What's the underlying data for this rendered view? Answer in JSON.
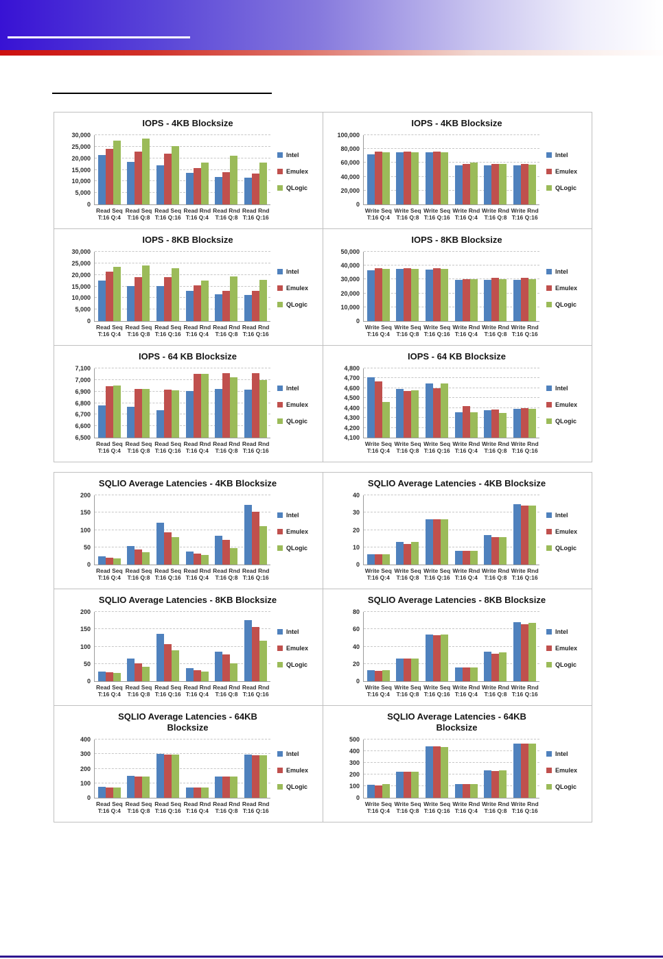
{
  "page": {
    "header": {
      "blue_band_color_left": "#3812d4",
      "red_band_color_left": "#cc1010",
      "white_rule_color": "#ffffff",
      "black_rule_color": "#000000"
    },
    "footer_rule_color": "#2e1390"
  },
  "legend": {
    "position": "right",
    "items": [
      {
        "label": "Intel",
        "color": "#4F81BD"
      },
      {
        "label": "Emulex",
        "color": "#C0504D"
      },
      {
        "label": "QLogic",
        "color": "#9BBB59"
      }
    ]
  },
  "chart_data": [
    {
      "id": "iops-4kb-read",
      "type": "bar",
      "group": "iops",
      "title_lines": [
        "IOPS - 4KB Blocksize"
      ],
      "ymin": 0,
      "ymax": 30000,
      "ticks": [
        "0",
        "5,000",
        "10,000",
        "15,000",
        "20,000",
        "25,000",
        "30,000"
      ],
      "categories": [
        [
          "Read Seq",
          "T:16 Q:4"
        ],
        [
          "Read Seq",
          "T:16 Q:8"
        ],
        [
          "Read Seq",
          "T:16 Q:16"
        ],
        [
          "Read Rnd",
          "T:16 Q:4"
        ],
        [
          "Read Rnd",
          "T:16 Q:8"
        ],
        [
          "Read Rnd",
          "T:16 Q:16"
        ]
      ],
      "series": [
        {
          "name": "Intel",
          "color": "#4F81BD",
          "values": [
            21500,
            18500,
            17000,
            13800,
            12000,
            11500
          ]
        },
        {
          "name": "Emulex",
          "color": "#C0504D",
          "values": [
            24000,
            23000,
            22000,
            15800,
            14000,
            13300
          ]
        },
        {
          "name": "QLogic",
          "color": "#9BBB59",
          "values": [
            27700,
            28600,
            25300,
            18000,
            21000,
            18200
          ]
        }
      ]
    },
    {
      "id": "iops-4kb-write",
      "type": "bar",
      "group": "iops",
      "title_lines": [
        "IOPS - 4KB Blocksize"
      ],
      "ymin": 0,
      "ymax": 100000,
      "ticks": [
        "0",
        "20,000",
        "40,000",
        "60,000",
        "80,000",
        "100,000"
      ],
      "categories": [
        [
          "Write Seq",
          "T:16 Q:4"
        ],
        [
          "Write Seq",
          "T:16 Q:8"
        ],
        [
          "Write Seq",
          "T:16 Q:16"
        ],
        [
          "Write Rnd",
          "T:16 Q:4"
        ],
        [
          "Write Rnd",
          "T:16 Q:8"
        ],
        [
          "Write Rnd",
          "T:16 Q:16"
        ]
      ],
      "series": [
        {
          "name": "Intel",
          "color": "#4F81BD",
          "values": [
            72000,
            75000,
            75000,
            56000,
            56000,
            56000
          ]
        },
        {
          "name": "Emulex",
          "color": "#C0504D",
          "values": [
            76000,
            76000,
            76000,
            58500,
            58500,
            58500
          ]
        },
        {
          "name": "QLogic",
          "color": "#9BBB59",
          "values": [
            75000,
            75000,
            75000,
            60000,
            58500,
            57500
          ]
        }
      ]
    },
    {
      "id": "iops-8kb-read",
      "type": "bar",
      "group": "iops",
      "title_lines": [
        "IOPS - 8KB Blocksize"
      ],
      "ymin": 0,
      "ymax": 30000,
      "ticks": [
        "0",
        "5,000",
        "10,000",
        "15,000",
        "20,000",
        "25,000",
        "30,000"
      ],
      "categories": [
        [
          "Read Seq",
          "T:16 Q:4"
        ],
        [
          "Read Seq",
          "T:16 Q:8"
        ],
        [
          "Read Seq",
          "T:16 Q:16"
        ],
        [
          "Read Rnd",
          "T:16 Q:4"
        ],
        [
          "Read Rnd",
          "T:16 Q:8"
        ],
        [
          "Read Rnd",
          "T:16 Q:16"
        ]
      ],
      "series": [
        {
          "name": "Intel",
          "color": "#4F81BD",
          "values": [
            17500,
            15200,
            15200,
            13000,
            11500,
            11200
          ]
        },
        {
          "name": "Emulex",
          "color": "#C0504D",
          "values": [
            21500,
            19000,
            19000,
            15500,
            13000,
            13000
          ]
        },
        {
          "name": "QLogic",
          "color": "#9BBB59",
          "values": [
            23500,
            24200,
            22800,
            17500,
            19200,
            17700
          ]
        }
      ]
    },
    {
      "id": "iops-8kb-write",
      "type": "bar",
      "group": "iops",
      "title_lines": [
        "IOPS - 8KB Blocksize"
      ],
      "ymin": 0,
      "ymax": 50000,
      "ticks": [
        "0",
        "10,000",
        "20,000",
        "30,000",
        "40,000",
        "50,000"
      ],
      "categories": [
        [
          "Write Seq",
          "T:16 Q:4"
        ],
        [
          "Write Seq",
          "T:16 Q:8"
        ],
        [
          "Write Seq",
          "T:16 Q:16"
        ],
        [
          "Write Rnd",
          "T:16 Q:4"
        ],
        [
          "Write Rnd",
          "T:16 Q:8"
        ],
        [
          "Write Rnd",
          "T:16 Q:16"
        ]
      ],
      "series": [
        {
          "name": "Intel",
          "color": "#4F81BD",
          "values": [
            36500,
            37500,
            37000,
            29800,
            29500,
            29500
          ]
        },
        {
          "name": "Emulex",
          "color": "#C0504D",
          "values": [
            38000,
            38000,
            38000,
            30200,
            31000,
            31000
          ]
        },
        {
          "name": "QLogic",
          "color": "#9BBB59",
          "values": [
            37500,
            37500,
            37500,
            30200,
            30200,
            30000
          ]
        }
      ]
    },
    {
      "id": "iops-64kb-read",
      "type": "bar",
      "group": "iops",
      "title_lines": [
        "IOPS - 64 KB Blocksize"
      ],
      "ymin": 6500,
      "ymax": 7100,
      "ticks": [
        "6,500",
        "6,600",
        "6,700",
        "6,800",
        "6,900",
        "7,000",
        "7,100"
      ],
      "categories": [
        [
          "Read Seq",
          "T:16 Q:4"
        ],
        [
          "Read Seq",
          "T:16 Q:8"
        ],
        [
          "Read Seq",
          "T:16 Q:16"
        ],
        [
          "Read Rnd",
          "T:16 Q:4"
        ],
        [
          "Read Rnd",
          "T:16 Q:8"
        ],
        [
          "Read Rnd",
          "T:16 Q:16"
        ]
      ],
      "series": [
        {
          "name": "Intel",
          "color": "#4F81BD",
          "values": [
            6780,
            6765,
            6735,
            6905,
            6920,
            6915
          ]
        },
        {
          "name": "Emulex",
          "color": "#C0504D",
          "values": [
            6945,
            6920,
            6915,
            7055,
            7060,
            7060
          ]
        },
        {
          "name": "QLogic",
          "color": "#9BBB59",
          "values": [
            6950,
            6920,
            6910,
            7050,
            7025,
            7000
          ]
        }
      ]
    },
    {
      "id": "iops-64kb-write",
      "type": "bar",
      "group": "iops",
      "title_lines": [
        "IOPS - 64 KB Blocksize"
      ],
      "ymin": 4100,
      "ymax": 4800,
      "ticks": [
        "4,100",
        "4,200",
        "4,300",
        "4,400",
        "4,500",
        "4,600",
        "4,700",
        "4,800"
      ],
      "categories": [
        [
          "Write Seq",
          "T:16 Q:4"
        ],
        [
          "Write Seq",
          "T:16 Q:8"
        ],
        [
          "Write Seq",
          "T:16 Q:16"
        ],
        [
          "Write Rnd",
          "T:16 Q:4"
        ],
        [
          "Write Rnd",
          "T:16 Q:8"
        ],
        [
          "Write Rnd",
          "T:16 Q:16"
        ]
      ],
      "series": [
        {
          "name": "Intel",
          "color": "#4F81BD",
          "values": [
            4710,
            4590,
            4645,
            4360,
            4375,
            4390
          ]
        },
        {
          "name": "Emulex",
          "color": "#C0504D",
          "values": [
            4670,
            4570,
            4600,
            4420,
            4385,
            4400
          ]
        },
        {
          "name": "QLogic",
          "color": "#9BBB59",
          "values": [
            4460,
            4580,
            4645,
            4360,
            4350,
            4390
          ]
        }
      ]
    },
    {
      "id": "latency-4kb-read",
      "type": "bar",
      "group": "latency",
      "title_lines": [
        "SQLIO Average Latencies - 4KB Blocksize"
      ],
      "ymin": 0,
      "ymax": 200,
      "ticks": [
        "0",
        "50",
        "100",
        "150",
        "200"
      ],
      "categories": [
        [
          "Read Seq",
          "T:16 Q:4"
        ],
        [
          "Read Seq",
          "T:16 Q:8"
        ],
        [
          "Read Seq",
          "T:16 Q:16"
        ],
        [
          "Read Rnd",
          "T:16 Q:4"
        ],
        [
          "Read Rnd",
          "T:16 Q:8"
        ],
        [
          "Read Rnd",
          "T:16 Q:16"
        ]
      ],
      "series": [
        {
          "name": "Intel",
          "color": "#4F81BD",
          "values": [
            24,
            54,
            120,
            37,
            83,
            173
          ]
        },
        {
          "name": "Emulex",
          "color": "#C0504D",
          "values": [
            20,
            43,
            93,
            31,
            72,
            153
          ]
        },
        {
          "name": "QLogic",
          "color": "#9BBB59",
          "values": [
            18,
            35,
            79,
            28,
            47,
            110
          ]
        }
      ]
    },
    {
      "id": "latency-4kb-write",
      "type": "bar",
      "group": "latency",
      "title_lines": [
        "SQLIO Average Latencies - 4KB Blocksize"
      ],
      "ymin": 0,
      "ymax": 40,
      "ticks": [
        "0",
        "10",
        "20",
        "30",
        "40"
      ],
      "categories": [
        [
          "Write Seq",
          "T:16 Q:4"
        ],
        [
          "Write Seq",
          "T:16 Q:8"
        ],
        [
          "Write Seq",
          "T:16 Q:16"
        ],
        [
          "Write Rnd",
          "T:16 Q:4"
        ],
        [
          "Write Rnd",
          "T:16 Q:8"
        ],
        [
          "Write Rnd",
          "T:16 Q:16"
        ]
      ],
      "series": [
        {
          "name": "Intel",
          "color": "#4F81BD",
          "values": [
            6,
            13,
            26,
            8,
            17,
            35
          ]
        },
        {
          "name": "Emulex",
          "color": "#C0504D",
          "values": [
            6,
            12,
            26,
            8,
            16,
            34
          ]
        },
        {
          "name": "QLogic",
          "color": "#9BBB59",
          "values": [
            6,
            13,
            26,
            8,
            16,
            34
          ]
        }
      ]
    },
    {
      "id": "latency-8kb-read",
      "type": "bar",
      "group": "latency",
      "title_lines": [
        "SQLIO Average Latencies - 8KB Blocksize"
      ],
      "ymin": 0,
      "ymax": 200,
      "ticks": [
        "0",
        "50",
        "100",
        "150",
        "200"
      ],
      "categories": [
        [
          "Read Seq",
          "T:16 Q:4"
        ],
        [
          "Read Seq",
          "T:16 Q:8"
        ],
        [
          "Read Seq",
          "T:16 Q:16"
        ],
        [
          "Read Rnd",
          "T:16 Q:4"
        ],
        [
          "Read Rnd",
          "T:16 Q:8"
        ],
        [
          "Read Rnd",
          "T:16 Q:16"
        ]
      ],
      "series": [
        {
          "name": "Intel",
          "color": "#4F81BD",
          "values": [
            28,
            66,
            136,
            37,
            85,
            177
          ]
        },
        {
          "name": "Emulex",
          "color": "#C0504D",
          "values": [
            25,
            52,
            106,
            31,
            77,
            156
          ]
        },
        {
          "name": "QLogic",
          "color": "#9BBB59",
          "values": [
            23,
            41,
            89,
            28,
            52,
            116
          ]
        }
      ]
    },
    {
      "id": "latency-8kb-write",
      "type": "bar",
      "group": "latency",
      "title_lines": [
        "SQLIO Average Latencies - 8KB Blocksize"
      ],
      "ymin": 0,
      "ymax": 80,
      "ticks": [
        "0",
        "20",
        "40",
        "60",
        "80"
      ],
      "categories": [
        [
          "Write Seq",
          "T:16 Q:4"
        ],
        [
          "Write Seq",
          "T:16 Q:8"
        ],
        [
          "Write Seq",
          "T:16 Q:16"
        ],
        [
          "Write Rnd",
          "T:16 Q:4"
        ],
        [
          "Write Rnd",
          "T:16 Q:8"
        ],
        [
          "Write Rnd",
          "T:16 Q:16"
        ]
      ],
      "series": [
        {
          "name": "Intel",
          "color": "#4F81BD",
          "values": [
            13,
            26,
            54,
            16,
            34,
            68
          ]
        },
        {
          "name": "Emulex",
          "color": "#C0504D",
          "values": [
            12,
            26,
            53,
            16,
            32,
            66
          ]
        },
        {
          "name": "QLogic",
          "color": "#9BBB59",
          "values": [
            13,
            26,
            54,
            16,
            33,
            67
          ]
        }
      ]
    },
    {
      "id": "latency-64kb-read",
      "type": "bar",
      "group": "latency",
      "title_lines": [
        "SQLIO Average Latencies - 64KB",
        "Blocksize"
      ],
      "ymin": 0,
      "ymax": 400,
      "ticks": [
        "0",
        "100",
        "200",
        "300",
        "400"
      ],
      "categories": [
        [
          "Read Seq",
          "T:16 Q:4"
        ],
        [
          "Read Seq",
          "T:16 Q:8"
        ],
        [
          "Read Seq",
          "T:16 Q:16"
        ],
        [
          "Read Rnd",
          "T:16 Q:4"
        ],
        [
          "Read Rnd",
          "T:16 Q:8"
        ],
        [
          "Read Rnd",
          "T:16 Q:16"
        ]
      ],
      "series": [
        {
          "name": "Intel",
          "color": "#4F81BD",
          "values": [
            75,
            153,
            302,
            72,
            147,
            297
          ]
        },
        {
          "name": "Emulex",
          "color": "#C0504D",
          "values": [
            72,
            147,
            297,
            71,
            146,
            291
          ]
        },
        {
          "name": "QLogic",
          "color": "#9BBB59",
          "values": [
            72,
            147,
            297,
            71,
            146,
            291
          ]
        }
      ]
    },
    {
      "id": "latency-64kb-write",
      "type": "bar",
      "group": "latency",
      "title_lines": [
        "SQLIO Average Latencies - 64KB",
        "Blocksize"
      ],
      "ymin": 0,
      "ymax": 500,
      "ticks": [
        "0",
        "100",
        "200",
        "300",
        "400",
        "500"
      ],
      "categories": [
        [
          "Write Seq",
          "T:16 Q:4"
        ],
        [
          "Write Seq",
          "T:16 Q:8"
        ],
        [
          "Write Seq",
          "T:16 Q:16"
        ],
        [
          "Write Rnd",
          "T:16 Q:4"
        ],
        [
          "Write Rnd",
          "T:16 Q:8"
        ],
        [
          "Write Rnd",
          "T:16 Q:16"
        ]
      ],
      "series": [
        {
          "name": "Intel",
          "color": "#4F81BD",
          "values": [
            110,
            222,
            443,
            116,
            235,
            463
          ]
        },
        {
          "name": "Emulex",
          "color": "#C0504D",
          "values": [
            108,
            222,
            443,
            116,
            230,
            462
          ]
        },
        {
          "name": "QLogic",
          "color": "#9BBB59",
          "values": [
            117,
            223,
            435,
            117,
            235,
            462
          ]
        }
      ]
    }
  ]
}
